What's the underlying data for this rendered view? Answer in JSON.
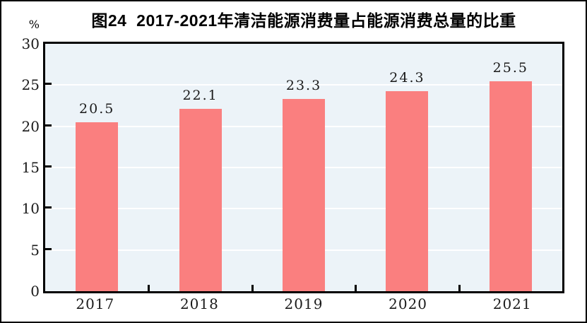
{
  "figure": {
    "title": "图24  2017-2021年清洁能源消费量占能源消费总量的比重",
    "unit_label": "%"
  },
  "chart_data": {
    "type": "bar",
    "title": "图24  2017-2021年清洁能源消费量占能源消费总量的比重",
    "categories": [
      "2017",
      "2018",
      "2019",
      "2020",
      "2021"
    ],
    "values": [
      20.5,
      22.1,
      23.3,
      24.3,
      25.5
    ],
    "value_labels": [
      "20.5",
      "22.1",
      "23.3",
      "24.3",
      "25.5"
    ],
    "xlabel": "",
    "ylabel": "%",
    "ylim": [
      0,
      30
    ],
    "yticks": [
      0,
      5,
      10,
      15,
      20,
      25,
      30
    ],
    "gridline_values": [
      5,
      10,
      15,
      20,
      25
    ],
    "grid": true,
    "legend_position": "none",
    "colors": {
      "bar": "#FA7F7F",
      "plot_background": "#ECF3F8",
      "gridline": "#FFFFFF",
      "axis_frame": "#000000",
      "text": "#000000"
    }
  }
}
